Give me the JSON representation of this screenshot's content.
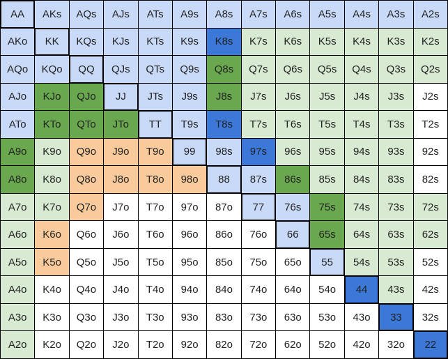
{
  "colors": {
    "B": "#c9daf8",
    "D": "#3c78d8",
    "G": "#6aa84f",
    "L": "#d9ead3",
    "O": "#f9cb9c",
    "W": "#ffffff"
  },
  "ranks": [
    "A",
    "K",
    "Q",
    "J",
    "T",
    "9",
    "8",
    "7",
    "6",
    "5",
    "4",
    "3",
    "2"
  ],
  "rows": [
    {
      "hands": [
        "AA",
        "AKs",
        "AQs",
        "AJs",
        "ATs",
        "A9s",
        "A8s",
        "A7s",
        "A6s",
        "A5s",
        "A4s",
        "A3s",
        "A2s"
      ],
      "colors": "BBBBBBBBBBBBB"
    },
    {
      "hands": [
        "AKo",
        "KK",
        "KQs",
        "KJs",
        "KTs",
        "K9s",
        "K8s",
        "K7s",
        "K6s",
        "K5s",
        "K4s",
        "K3s",
        "K2s"
      ],
      "colors": "BBBBBBDLLLLLL"
    },
    {
      "hands": [
        "AQo",
        "KQo",
        "QQ",
        "QJs",
        "QTs",
        "Q9s",
        "Q8s",
        "Q7s",
        "Q6s",
        "Q5s",
        "Q4s",
        "Q3s",
        "Q2s"
      ],
      "colors": "BBBBBBGLLLLLL"
    },
    {
      "hands": [
        "AJo",
        "KJo",
        "QJo",
        "JJ",
        "JTs",
        "J9s",
        "J8s",
        "J7s",
        "J6s",
        "J5s",
        "J4s",
        "J3s",
        "J2s"
      ],
      "colors": "BGGBBBGLLLLLW"
    },
    {
      "hands": [
        "ATo",
        "KTo",
        "QTo",
        "JTo",
        "TT",
        "T9s",
        "T8s",
        "T7s",
        "T6s",
        "T5s",
        "T4s",
        "T3s",
        "T2s"
      ],
      "colors": "BGGGBBDLLLLLW"
    },
    {
      "hands": [
        "A9o",
        "K9o",
        "Q9o",
        "J9o",
        "T9o",
        "99",
        "98s",
        "97s",
        "96s",
        "95s",
        "94s",
        "93s",
        "92s"
      ],
      "colors": "GLOOOBBDLLLLW"
    },
    {
      "hands": [
        "A8o",
        "K8o",
        "Q8o",
        "J8o",
        "T8o",
        "98o",
        "88",
        "87s",
        "86s",
        "85s",
        "84s",
        "83s",
        "82s"
      ],
      "colors": "GLOOOOBBGLLLW"
    },
    {
      "hands": [
        "A7o",
        "K7o",
        "Q7o",
        "J7o",
        "T7o",
        "97o",
        "87o",
        "77",
        "76s",
        "75s",
        "74s",
        "73s",
        "72s"
      ],
      "colors": "LLOWWWWBBGLLL"
    },
    {
      "hands": [
        "A6o",
        "K6o",
        "Q6o",
        "J6o",
        "T6o",
        "96o",
        "86o",
        "76o",
        "66",
        "65s",
        "64s",
        "63s",
        "62s"
      ],
      "colors": "LOWWWWWWBGLLL"
    },
    {
      "hands": [
        "A5o",
        "K5o",
        "Q5o",
        "J5o",
        "T5o",
        "95o",
        "85o",
        "75o",
        "65o",
        "55",
        "54s",
        "53s",
        "52s"
      ],
      "colors": "LOWWWWWWWBLLW"
    },
    {
      "hands": [
        "A4o",
        "K4o",
        "Q4o",
        "J4o",
        "T4o",
        "94o",
        "84o",
        "74o",
        "64o",
        "54o",
        "44",
        "43s",
        "42s"
      ],
      "colors": "LWWWWWWWWWDLW"
    },
    {
      "hands": [
        "A3o",
        "K3o",
        "Q3o",
        "J3o",
        "T3o",
        "93o",
        "83o",
        "73o",
        "63o",
        "53o",
        "43o",
        "33",
        "32s"
      ],
      "colors": "LWWWWWWWWWWDW"
    },
    {
      "hands": [
        "A2o",
        "K2o",
        "Q2o",
        "J2o",
        "T2o",
        "92o",
        "82o",
        "72o",
        "62o",
        "52o",
        "42o",
        "32o",
        "22"
      ],
      "colors": "LWWWWWWWWWWWD"
    }
  ]
}
